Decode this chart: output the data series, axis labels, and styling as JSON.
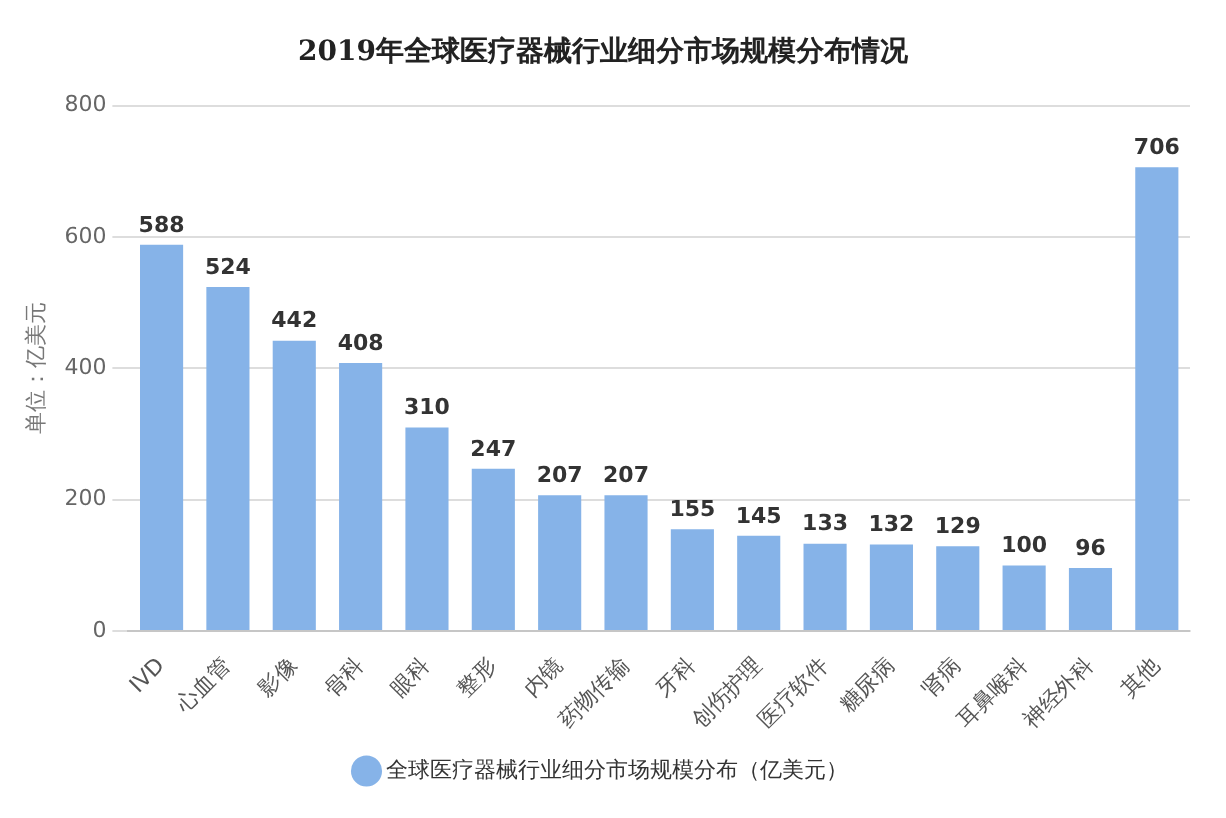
{
  "chart_data": {
    "type": "bar",
    "title": "2019年全球医疗器械行业细分市场规模分布情况",
    "ylabel": "单位：亿美元",
    "categories": [
      "IVD",
      "心血管",
      "影像",
      "骨科",
      "眼科",
      "整形",
      "内镜",
      "药物传输",
      "牙科",
      "创伤护理",
      "医疗软件",
      "糖尿病",
      "肾病",
      "耳鼻喉科",
      "神经外科",
      "其他"
    ],
    "series": [
      {
        "name": "全球医疗器械行业细分市场规模分布（亿美元）",
        "color": "#86b3e8",
        "values": [
          588,
          524,
          442,
          408,
          310,
          247,
          207,
          207,
          155,
          145,
          133,
          132,
          129,
          100,
          96,
          706
        ]
      }
    ],
    "ylim": [
      0,
      800
    ],
    "yticks": [
      0,
      200,
      400,
      600,
      800
    ],
    "grid": "y",
    "data_labels": true,
    "legend": "bottom"
  }
}
